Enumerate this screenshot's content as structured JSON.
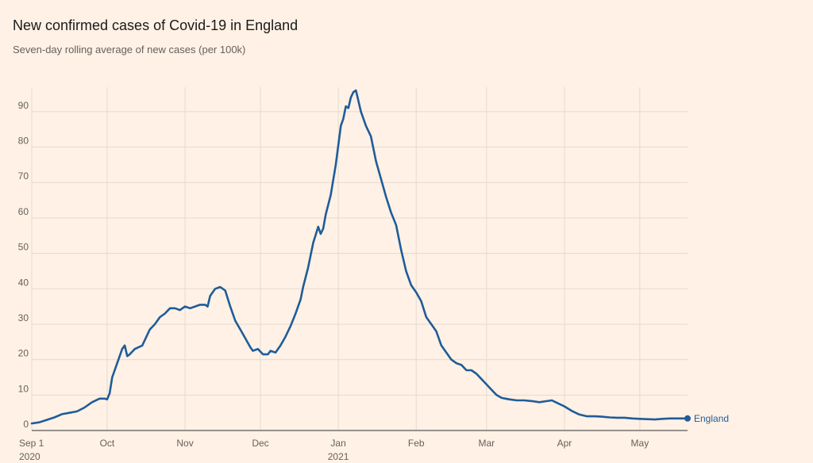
{
  "title": "New confirmed cases of Covid-19 in England",
  "subtitle": "Seven-day rolling average of new cases (per 100k)",
  "colors": {
    "background": "#FFF1E5",
    "line": "#1F5C99",
    "grid": "#E5DAD0",
    "text": "#66605C"
  },
  "chart_data": {
    "type": "line",
    "title": "New confirmed cases of Covid-19 in England",
    "subtitle": "Seven-day rolling average of new cases (per 100k)",
    "xlabel": "",
    "ylabel": "",
    "ylim": [
      0,
      96
    ],
    "y_ticks": [
      0,
      10,
      20,
      30,
      40,
      50,
      60,
      70,
      80,
      90
    ],
    "x_ticks": [
      {
        "date": "2020-09-01",
        "label": "Sep 1",
        "sublabel": "2020"
      },
      {
        "date": "2020-10-01",
        "label": "Oct",
        "sublabel": ""
      },
      {
        "date": "2020-11-01",
        "label": "Nov",
        "sublabel": ""
      },
      {
        "date": "2020-12-01",
        "label": "Dec",
        "sublabel": ""
      },
      {
        "date": "2021-01-01",
        "label": "Jan",
        "sublabel": "2021"
      },
      {
        "date": "2021-02-01",
        "label": "Feb",
        "sublabel": ""
      },
      {
        "date": "2021-03-01",
        "label": "Mar",
        "sublabel": ""
      },
      {
        "date": "2021-04-01",
        "label": "Apr",
        "sublabel": ""
      },
      {
        "date": "2021-05-01",
        "label": "May",
        "sublabel": ""
      }
    ],
    "grid": true,
    "series": [
      {
        "name": "England",
        "color": "#1F5C99",
        "points": [
          [
            "2020-09-01",
            2.0
          ],
          [
            "2020-09-04",
            2.3
          ],
          [
            "2020-09-07",
            3.0
          ],
          [
            "2020-09-10",
            3.7
          ],
          [
            "2020-09-13",
            4.6
          ],
          [
            "2020-09-16",
            5.0
          ],
          [
            "2020-09-19",
            5.4
          ],
          [
            "2020-09-22",
            6.5
          ],
          [
            "2020-09-25",
            8.0
          ],
          [
            "2020-09-28",
            9.0
          ],
          [
            "2020-09-30",
            9.0
          ],
          [
            "2020-10-01",
            8.8
          ],
          [
            "2020-10-02",
            10.5
          ],
          [
            "2020-10-03",
            15.0
          ],
          [
            "2020-10-05",
            19.0
          ],
          [
            "2020-10-07",
            23.0
          ],
          [
            "2020-10-08",
            24.0
          ],
          [
            "2020-10-09",
            21.0
          ],
          [
            "2020-10-10",
            21.5
          ],
          [
            "2020-10-12",
            23.0
          ],
          [
            "2020-10-15",
            24.0
          ],
          [
            "2020-10-18",
            28.5
          ],
          [
            "2020-10-20",
            30.0
          ],
          [
            "2020-10-22",
            32.0
          ],
          [
            "2020-10-24",
            33.0
          ],
          [
            "2020-10-26",
            34.5
          ],
          [
            "2020-10-28",
            34.5
          ],
          [
            "2020-10-30",
            34.0
          ],
          [
            "2020-11-01",
            35.0
          ],
          [
            "2020-11-03",
            34.5
          ],
          [
            "2020-11-05",
            35.0
          ],
          [
            "2020-11-07",
            35.5
          ],
          [
            "2020-11-09",
            35.5
          ],
          [
            "2020-11-10",
            35.0
          ],
          [
            "2020-11-11",
            38.0
          ],
          [
            "2020-11-13",
            40.0
          ],
          [
            "2020-11-15",
            40.5
          ],
          [
            "2020-11-17",
            39.5
          ],
          [
            "2020-11-19",
            35.0
          ],
          [
            "2020-11-21",
            31.0
          ],
          [
            "2020-11-23",
            28.5
          ],
          [
            "2020-11-25",
            26.0
          ],
          [
            "2020-11-27",
            23.5
          ],
          [
            "2020-11-28",
            22.5
          ],
          [
            "2020-11-30",
            23.0
          ],
          [
            "2020-12-02",
            21.5
          ],
          [
            "2020-12-04",
            21.5
          ],
          [
            "2020-12-05",
            22.5
          ],
          [
            "2020-12-07",
            22.0
          ],
          [
            "2020-12-09",
            24.0
          ],
          [
            "2020-12-11",
            26.5
          ],
          [
            "2020-12-13",
            29.5
          ],
          [
            "2020-12-15",
            33.0
          ],
          [
            "2020-12-17",
            37.0
          ],
          [
            "2020-12-18",
            40.5
          ],
          [
            "2020-12-20",
            46.0
          ],
          [
            "2020-12-22",
            53.0
          ],
          [
            "2020-12-24",
            57.5
          ],
          [
            "2020-12-25",
            55.5
          ],
          [
            "2020-12-26",
            57.0
          ],
          [
            "2020-12-27",
            61.0
          ],
          [
            "2020-12-29",
            66.5
          ],
          [
            "2020-12-31",
            75.0
          ],
          [
            "2021-01-02",
            86.0
          ],
          [
            "2021-01-03",
            88.0
          ],
          [
            "2021-01-04",
            91.5
          ],
          [
            "2021-01-05",
            91.0
          ],
          [
            "2021-01-06",
            94.0
          ],
          [
            "2021-01-07",
            95.5
          ],
          [
            "2021-01-08",
            96.0
          ],
          [
            "2021-01-10",
            90.0
          ],
          [
            "2021-01-12",
            86.0
          ],
          [
            "2021-01-14",
            83.0
          ],
          [
            "2021-01-16",
            76.0
          ],
          [
            "2021-01-18",
            71.0
          ],
          [
            "2021-01-20",
            66.0
          ],
          [
            "2021-01-22",
            61.5
          ],
          [
            "2021-01-24",
            58.0
          ],
          [
            "2021-01-26",
            51.0
          ],
          [
            "2021-01-28",
            45.0
          ],
          [
            "2021-01-30",
            41.0
          ],
          [
            "2021-02-01",
            39.0
          ],
          [
            "2021-02-03",
            36.5
          ],
          [
            "2021-02-05",
            32.0
          ],
          [
            "2021-02-07",
            30.0
          ],
          [
            "2021-02-09",
            28.0
          ],
          [
            "2021-02-11",
            24.0
          ],
          [
            "2021-02-13",
            22.0
          ],
          [
            "2021-02-15",
            20.0
          ],
          [
            "2021-02-17",
            19.0
          ],
          [
            "2021-02-19",
            18.5
          ],
          [
            "2021-02-21",
            17.0
          ],
          [
            "2021-02-23",
            17.0
          ],
          [
            "2021-02-25",
            16.0
          ],
          [
            "2021-02-27",
            14.5
          ],
          [
            "2021-03-01",
            13.0
          ],
          [
            "2021-03-03",
            11.5
          ],
          [
            "2021-03-05",
            10.0
          ],
          [
            "2021-03-07",
            9.2
          ],
          [
            "2021-03-10",
            8.8
          ],
          [
            "2021-03-13",
            8.5
          ],
          [
            "2021-03-16",
            8.5
          ],
          [
            "2021-03-19",
            8.3
          ],
          [
            "2021-03-22",
            8.0
          ],
          [
            "2021-03-25",
            8.3
          ],
          [
            "2021-03-27",
            8.5
          ],
          [
            "2021-03-29",
            7.8
          ],
          [
            "2021-04-01",
            6.8
          ],
          [
            "2021-04-04",
            5.5
          ],
          [
            "2021-04-07",
            4.5
          ],
          [
            "2021-04-10",
            4.0
          ],
          [
            "2021-04-13",
            4.0
          ],
          [
            "2021-04-16",
            3.9
          ],
          [
            "2021-04-19",
            3.7
          ],
          [
            "2021-04-22",
            3.6
          ],
          [
            "2021-04-25",
            3.6
          ],
          [
            "2021-04-28",
            3.4
          ],
          [
            "2021-05-01",
            3.3
          ],
          [
            "2021-05-04",
            3.2
          ],
          [
            "2021-05-07",
            3.1
          ],
          [
            "2021-05-10",
            3.3
          ],
          [
            "2021-05-13",
            3.4
          ],
          [
            "2021-05-16",
            3.4
          ],
          [
            "2021-05-20",
            3.4
          ]
        ]
      }
    ],
    "end_label": "England"
  }
}
